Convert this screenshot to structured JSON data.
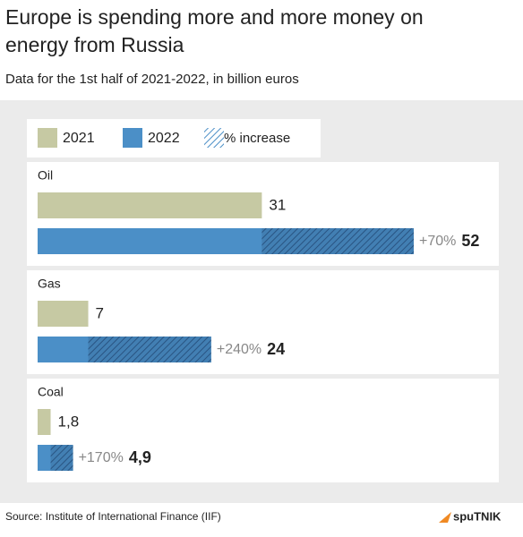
{
  "chart_data": {
    "type": "bar",
    "title": "Europe is spending more and more money on energy from Russia",
    "subtitle": "Data for the 1st half of 2021-2022, in billion euros",
    "categories": [
      "Oil",
      "Gas",
      "Coal"
    ],
    "series": [
      {
        "name": "2021",
        "color": "#c6c9a3",
        "values": [
          31,
          7,
          1.8
        ],
        "value_labels": [
          "31",
          "7",
          "1,8"
        ]
      },
      {
        "name": "2022",
        "color": "#4b8fc7",
        "values": [
          52,
          24,
          4.9
        ],
        "value_labels": [
          "52",
          "24",
          "4,9"
        ]
      }
    ],
    "increase": {
      "name": "% increase",
      "values": [
        70,
        240,
        170
      ],
      "value_labels": [
        "+70%",
        "+240%",
        "+170%"
      ]
    },
    "source": "Source: Institute of International Finance (IIF)",
    "brand": "spuTNIK"
  }
}
